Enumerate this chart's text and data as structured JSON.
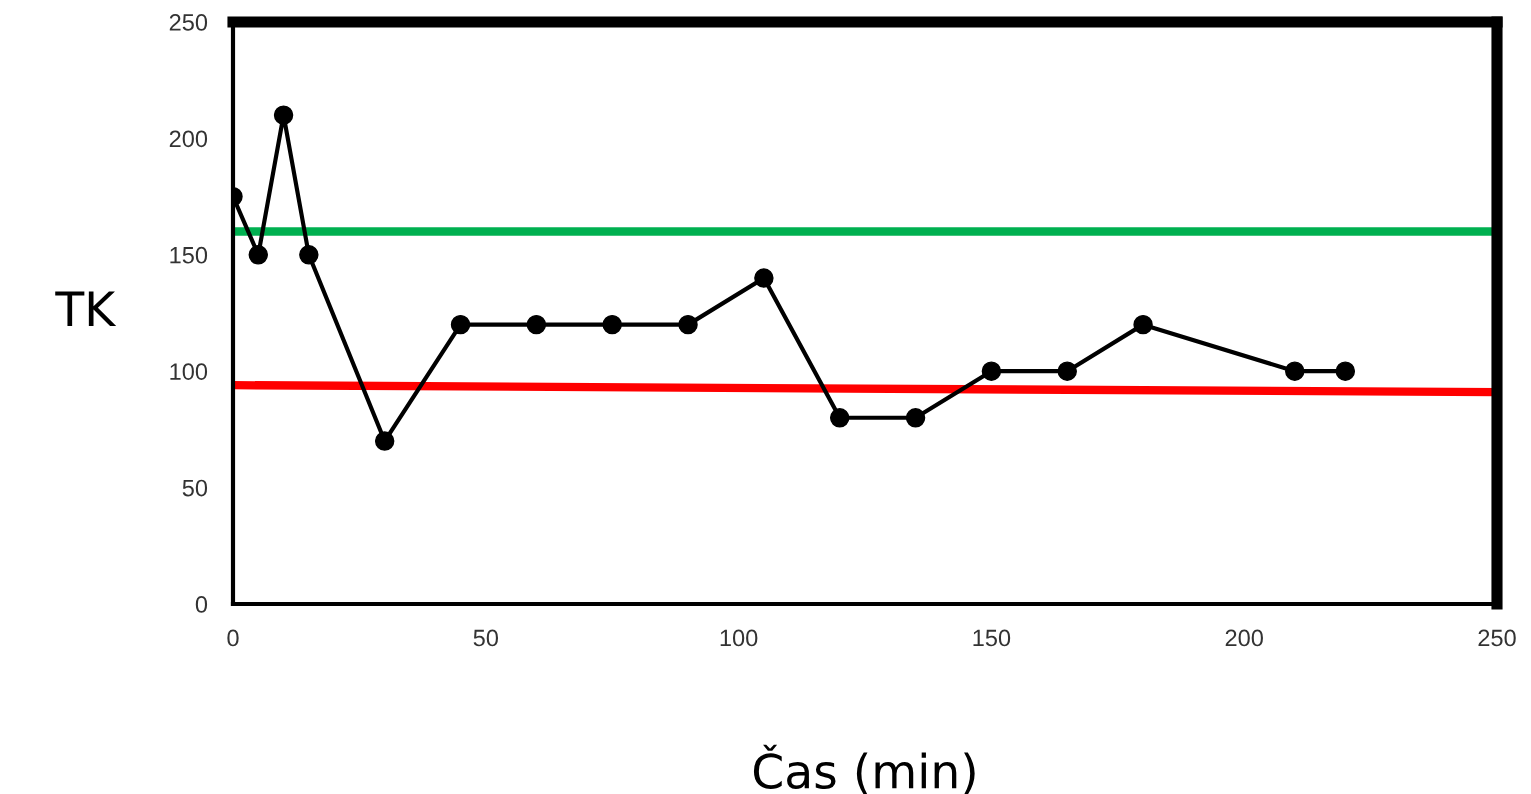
{
  "chart_data": {
    "type": "line",
    "xlabel": "Čas (min)",
    "ylabel": "TK",
    "xlim": [
      0,
      250
    ],
    "xticks": [
      0,
      50,
      100,
      150,
      200,
      250
    ],
    "ylim": [
      0,
      250
    ],
    "yticks": [
      0,
      50,
      100,
      150,
      200,
      250
    ],
    "grid": false,
    "legend": false,
    "marker": "circle",
    "line_style": "solid",
    "series": [
      {
        "color": "#000000",
        "x": [
          0,
          5,
          10,
          15,
          30,
          45,
          60,
          75,
          90,
          105,
          120,
          135,
          150,
          165,
          180,
          210,
          220
        ],
        "values": [
          175,
          150,
          210,
          150,
          70,
          120,
          120,
          120,
          120,
          140,
          80,
          80,
          100,
          100,
          120,
          100,
          100
        ]
      },
      {
        "color": "#ff0000",
        "marker": "none",
        "x": [
          0,
          250
        ],
        "values": [
          94,
          91
        ]
      }
    ],
    "ref_lines": [
      {
        "axis": "y",
        "value": 160,
        "color": "#00b050"
      }
    ]
  }
}
